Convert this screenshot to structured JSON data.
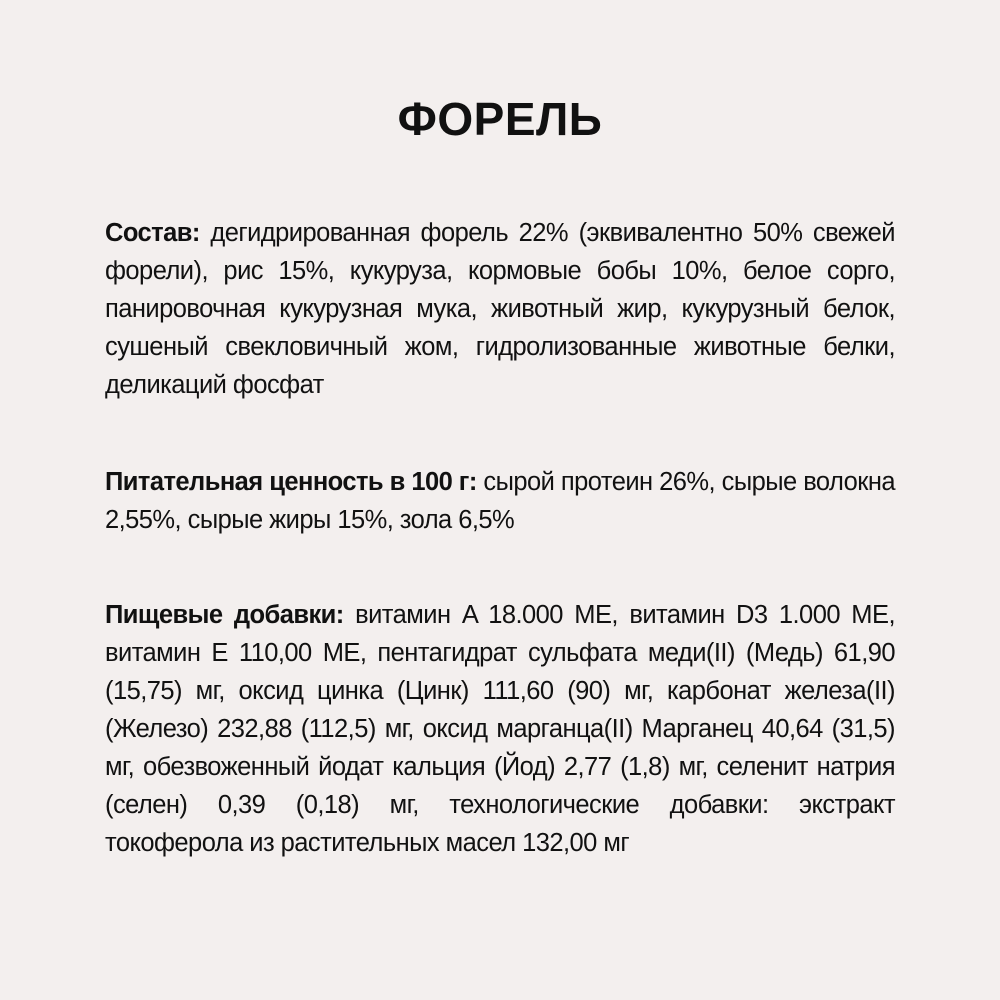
{
  "title": "ФОРЕЛЬ",
  "sections": [
    {
      "label": "Состав:",
      "text": " дегидрированная форель 22% (эквивалентно 50% свежей форели), рис 15%, кукуруза, кормовые бобы 10%, белое сорго, панировочная кукурузная мука, животный жир, кукурузный белок, сушеный свекловичный жом, гидролизованные животные белки, деликаций фосфат"
    },
    {
      "label": "Питательная ценность в 100 г:",
      "text": " сырой протеин 26%, сырые волокна 2,55%, сырые жиры 15%, зола 6,5%"
    },
    {
      "label": "Пищевые добавки:",
      "text": " витамин A 18.000 МЕ, витамин D3 1.000 МЕ, витамин E 110,00 МЕ, пентагидрат сульфата меди(II) (Медь) 61,90 (15,75) мг, оксид цинка (Цинк) 111,60 (90) мг, карбонат железа(II) (Железо) 232,88 (112,5) мг, оксид марганца(II) Марганец 40,64 (31,5) мг, обезвоженный йодат кальция (Йод) 2,77 (1,8) мг, селенит натрия (селен) 0,39 (0,18) мг, технологические добавки: экстракт токоферола из растительных масел 132,00 мг"
    }
  ],
  "colors": {
    "background": "#f3efee",
    "text": "#111111"
  }
}
